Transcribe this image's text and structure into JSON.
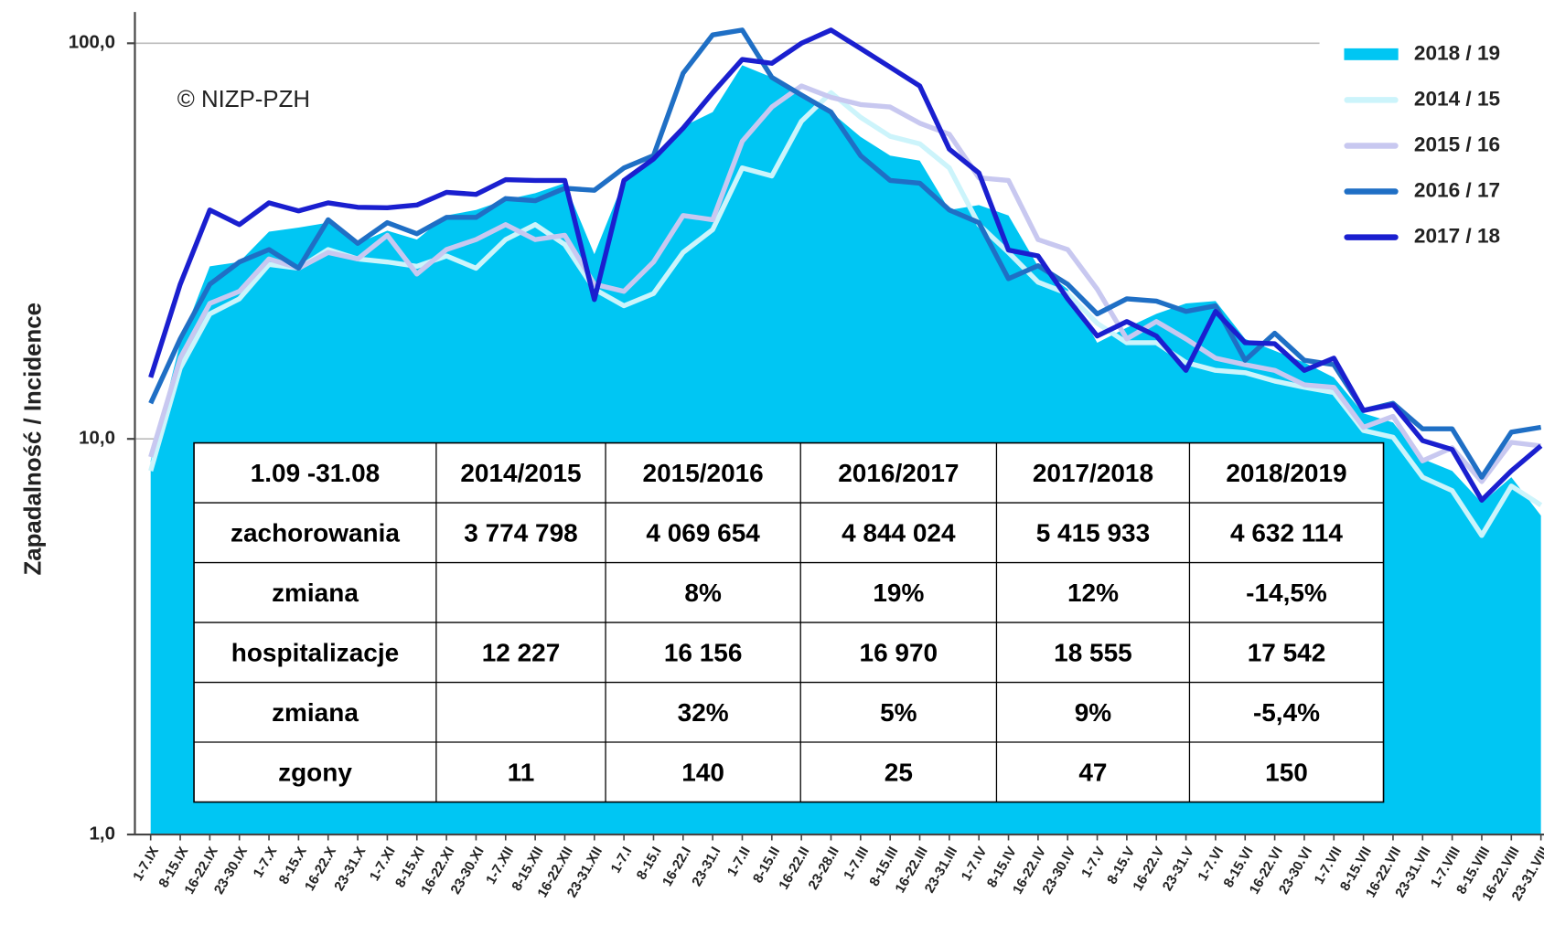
{
  "chart_data": {
    "type": "area-line",
    "annotation": "© NIZP-PZH",
    "y_label": "Zapadalność  / Incidence",
    "yscale": "log",
    "ylim": [
      1,
      120
    ],
    "yticks": [
      {
        "value": 1,
        "label": "1,0"
      },
      {
        "value": 10,
        "label": "10,0"
      },
      {
        "value": 100,
        "label": "100,0"
      }
    ],
    "grid": true,
    "legend": "right",
    "categories": [
      "1-7.IX",
      "8-15.IX",
      "16-22.IX",
      "23-30.IX",
      "1-7.X",
      "8-15.X",
      "16-22.X",
      "23-31.X",
      "1-7.XI",
      "8-15.XI",
      "16-22.XI",
      "23-30.XI",
      "1-7.XII",
      "8-15.XII",
      "16-22.XII",
      "23-31.XII",
      "1-7.I",
      "8-15.I",
      "16-22.I",
      "23-31.I",
      "1-7.II",
      "8-15.II",
      "16-22.II",
      "23-28.II",
      "1-7.III",
      "8-15.III",
      "16-22.III",
      "23-31.III",
      "1-7.IV",
      "8-15.IV",
      "16-22.IV",
      "23-30.IV",
      "1-7.V",
      "8-15.V",
      "16-22.V",
      "23-31.V",
      "1-7.VI",
      "8-15.VI",
      "16-22.VI",
      "23-30.VI",
      "1-7.VII",
      "8-15.VII",
      "16-22.VII",
      "23-31.VII",
      "1-7.VIII",
      "8-15.VIII",
      "16-22.VIII",
      "23-31.VIII"
    ],
    "series": [
      {
        "name": "2018 / 19",
        "kind": "area",
        "color": "#00c6f3",
        "values": [
          8.8,
          17.5,
          27.3,
          28,
          33.4,
          34.2,
          35.2,
          31.2,
          33.6,
          31.9,
          36.7,
          37.9,
          40.2,
          41.8,
          44.3,
          29.3,
          45,
          50.5,
          61.6,
          67,
          88,
          82,
          75,
          67,
          58,
          52,
          50.5,
          37.9,
          39,
          36.7,
          27.3,
          23.9,
          17.5,
          19.1,
          20.7,
          22,
          22.3,
          17.9,
          16.7,
          15.6,
          14.3,
          11.6,
          11,
          8.9,
          8.3,
          6.9,
          8,
          6.4
        ]
      },
      {
        "name": "2014 / 15",
        "kind": "line",
        "color": "#ccf4fb",
        "values": [
          8.3,
          15.1,
          20.7,
          22.6,
          27.6,
          27,
          30.1,
          28.5,
          28,
          27.3,
          29,
          27,
          31.9,
          34.8,
          31,
          23.9,
          21.7,
          23.3,
          29.6,
          33.8,
          48.4,
          46.2,
          63.5,
          75,
          65,
          58.2,
          55.7,
          48.4,
          34.8,
          29.6,
          24.9,
          23.3,
          19.6,
          17.5,
          17.5,
          15.6,
          14.9,
          14.7,
          14,
          13.5,
          13.1,
          10.5,
          10.1,
          8,
          7.4,
          5.7,
          7.6,
          6.8
        ]
      },
      {
        "name": "2015 / 16",
        "kind": "line",
        "color": "#c8c8f0",
        "values": [
          9,
          16,
          22,
          23.6,
          28.5,
          27,
          29.6,
          28.5,
          32.7,
          26.1,
          30.1,
          31.9,
          34.8,
          31.9,
          32.7,
          24.6,
          23.6,
          28,
          36.7,
          35.8,
          56.5,
          69,
          78,
          73,
          70,
          69,
          62.8,
          58.9,
          45.7,
          45,
          31.9,
          30.1,
          23.9,
          17.9,
          19.8,
          17.9,
          16,
          15.4,
          14.9,
          13.7,
          13.5,
          10.7,
          11.4,
          8.8,
          9.5,
          7.8,
          9.8,
          9.6
        ]
      },
      {
        "name": "2016 / 17",
        "kind": "line",
        "color": "#1f6fc5",
        "values": [
          12.3,
          17.9,
          24.6,
          28,
          30.1,
          27,
          35.8,
          31.2,
          35.2,
          33,
          36.3,
          36.3,
          40.5,
          40,
          43,
          42.5,
          48.4,
          52,
          84,
          105,
          108,
          82,
          74,
          67,
          52,
          45,
          44.3,
          37.9,
          35.2,
          25.4,
          27.4,
          24.6,
          20.7,
          22.6,
          22.3,
          21,
          21.7,
          15.8,
          18.5,
          15.8,
          15.4,
          11.8,
          12.3,
          10.6,
          10.6,
          8,
          10.4,
          10.7
        ]
      },
      {
        "name": "2017 / 18",
        "kind": "line",
        "color": "#1a1fcf",
        "values": [
          14.3,
          24.6,
          37.9,
          34.8,
          39.5,
          37.7,
          39.5,
          38.5,
          38.4,
          39,
          42,
          41.5,
          45.2,
          45,
          45,
          22.5,
          45,
          51,
          61,
          75,
          91,
          89,
          100,
          108,
          97,
          87,
          78,
          54,
          47,
          30,
          29,
          22.6,
          18.2,
          19.8,
          18.2,
          14.9,
          21,
          17.5,
          17.4,
          14.9,
          16,
          11.8,
          12.2,
          9.9,
          9.4,
          7,
          8.3,
          9.6
        ]
      }
    ]
  },
  "table": {
    "header": [
      "1.09 -31.08",
      "2014/2015",
      "2015/2016",
      "2016/2017",
      "2017/2018",
      "2018/2019"
    ],
    "rows": [
      [
        "zachorowania",
        "3 774 798",
        "4 069 654",
        "4 844 024",
        "5 415 933",
        "4 632 114"
      ],
      [
        "zmiana",
        null,
        "8%",
        "19%",
        "12%",
        "-14,5%"
      ],
      [
        "hospitalizacje",
        "12 227",
        "16 156",
        "16 970",
        "18 555",
        "17 542"
      ],
      [
        "zmiana",
        null,
        "32%",
        "5%",
        "9%",
        "-5,4%"
      ],
      [
        "zgony",
        "11",
        "140",
        "25",
        "47",
        "150"
      ]
    ],
    "highlight_rows": [
      1,
      3
    ],
    "highlight_color": "#ff0000"
  }
}
